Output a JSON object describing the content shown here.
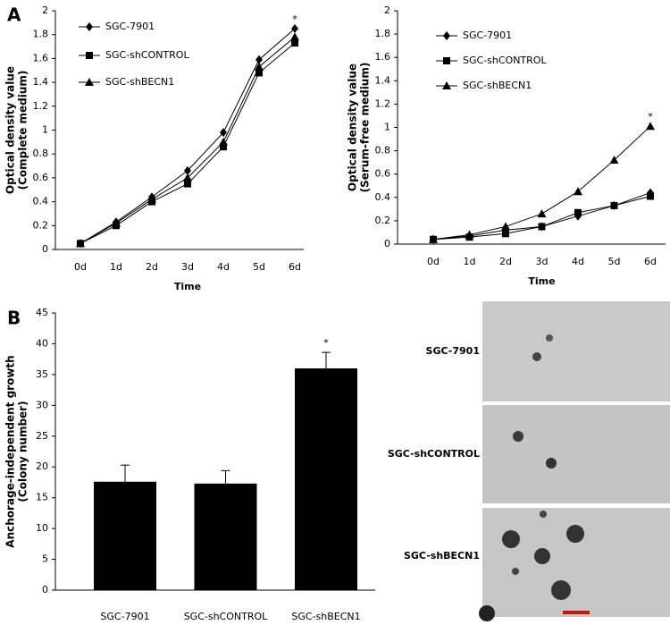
{
  "panel_labels": [
    "A",
    "B"
  ],
  "chart_data": [
    {
      "type": "line",
      "ylabel": [
        "Optical density value",
        "(Complete medium)"
      ],
      "xlabel": "Time",
      "categories": [
        "0d",
        "1d",
        "2d",
        "3d",
        "4d",
        "5d",
        "6d"
      ],
      "ylim": [
        0,
        2
      ],
      "yticks": [
        0,
        0.2,
        0.4,
        0.6,
        0.8,
        1,
        1.2,
        1.4,
        1.6,
        1.8,
        2
      ],
      "annotations": [
        "*"
      ],
      "series": [
        {
          "name": "SGC-7901",
          "color": "#000000",
          "marker": "diamond",
          "values": [
            0.05,
            0.23,
            0.44,
            0.66,
            0.98,
            1.59,
            1.85
          ]
        },
        {
          "name": "SGC-shCONTROL",
          "color": "#000000",
          "marker": "square",
          "values": [
            0.05,
            0.2,
            0.4,
            0.55,
            0.86,
            1.48,
            1.73
          ]
        },
        {
          "name": "SGC-shBECN1",
          "color": "#000000",
          "marker": "triangle",
          "values": [
            0.05,
            0.22,
            0.42,
            0.6,
            0.9,
            1.53,
            1.78
          ]
        }
      ]
    },
    {
      "type": "line",
      "ylabel": [
        "Optical density value",
        "(Serum-free medium)"
      ],
      "xlabel": "Time",
      "categories": [
        "0d",
        "1d",
        "2d",
        "3d",
        "4d",
        "5d",
        "6d"
      ],
      "ylim": [
        0,
        2
      ],
      "yticks": [
        0,
        0.2,
        0.4,
        0.6,
        0.8,
        1,
        1.2,
        1.4,
        1.6,
        1.8,
        2
      ],
      "annotations": [
        "*"
      ],
      "series": [
        {
          "name": "SGC-7901",
          "color": "#000000",
          "marker": "diamond",
          "values": [
            0.04,
            0.07,
            0.12,
            0.15,
            0.24,
            0.33,
            0.44
          ]
        },
        {
          "name": "SGC-shCONTROL",
          "color": "#000000",
          "marker": "square",
          "values": [
            0.04,
            0.06,
            0.09,
            0.15,
            0.27,
            0.33,
            0.41
          ]
        },
        {
          "name": "SGC-shBECN1",
          "color": "#000000",
          "marker": "triangle",
          "values": [
            0.04,
            0.08,
            0.15,
            0.26,
            0.45,
            0.72,
            1.01
          ]
        }
      ]
    },
    {
      "type": "bar",
      "ylabel": [
        "Anchorage-independent growth",
        "(Colony number)"
      ],
      "categories": [
        "SGC-7901",
        "SGC-shCONTROL",
        "SGC-shBECN1"
      ],
      "values": [
        17.6,
        17.3,
        36.0
      ],
      "errors": [
        2.7,
        2.1,
        2.6
      ],
      "color": "#000000",
      "ylim": [
        0,
        45
      ],
      "yticks": [
        0,
        5,
        10,
        15,
        20,
        25,
        30,
        35,
        40,
        45
      ],
      "annotations": [
        "*"
      ]
    }
  ],
  "micrographs": {
    "labels": [
      "SGC-7901",
      "SGC-shCONTROL",
      "SGC-shBECN1"
    ]
  }
}
